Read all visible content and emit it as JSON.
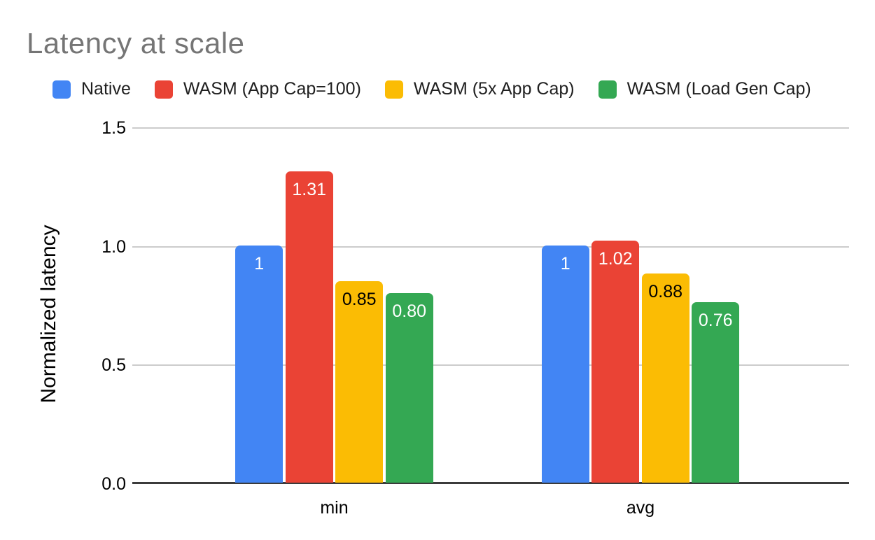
{
  "title": "Latency at scale",
  "title_color": "#757575",
  "axes": {
    "y_title": "Normalized latency",
    "y_ticks": [
      {
        "value": 1.5,
        "label": "1.5"
      },
      {
        "value": 1.0,
        "label": "1.0"
      },
      {
        "value": 0.5,
        "label": "0.5"
      },
      {
        "value": 0.0,
        "label": "0.0"
      }
    ],
    "x_labels": [
      "min",
      "avg"
    ]
  },
  "chart_data": {
    "type": "bar",
    "title": "Latency at scale",
    "categories": [
      "min",
      "avg"
    ],
    "series": [
      {
        "name": "Native",
        "color": "#4285F4",
        "label_color": "#ffffff",
        "values": [
          1.0,
          1.0
        ],
        "labels": [
          "1",
          "1"
        ]
      },
      {
        "name": "WASM (App Cap=100)",
        "color": "#EA4335",
        "label_color": "#ffffff",
        "values": [
          1.31,
          1.02
        ],
        "labels": [
          "1.31",
          "1.02"
        ]
      },
      {
        "name": "WASM (5x App Cap)",
        "color": "#FBBC04",
        "label_color": "#000000",
        "values": [
          0.85,
          0.88
        ],
        "labels": [
          "0.85",
          "0.88"
        ]
      },
      {
        "name": "WASM (Load Gen Cap)",
        "color": "#34A853",
        "label_color": "#ffffff",
        "values": [
          0.8,
          0.76
        ],
        "labels": [
          "0.80",
          "0.76"
        ]
      }
    ],
    "xlabel": "",
    "ylabel": "Normalized latency",
    "ylim": [
      0,
      1.5
    ],
    "yticks": [
      0,
      0.5,
      1.0,
      1.5
    ],
    "grid": true,
    "legend_position": "top"
  }
}
